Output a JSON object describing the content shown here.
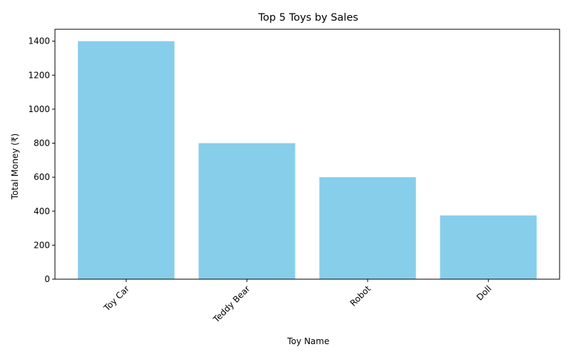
{
  "chart_data": {
    "type": "bar",
    "title": "Top 5 Toys by Sales",
    "xlabel": "Toy Name",
    "ylabel": "Total Money (₹)",
    "categories": [
      "Toy Car",
      "Teddy Bear",
      "Robot",
      "Doll"
    ],
    "values": [
      1400,
      800,
      600,
      375
    ],
    "ylim": [
      0,
      1470
    ],
    "yticks": [
      0,
      200,
      400,
      600,
      800,
      1000,
      1200,
      1400
    ],
    "xtick_rotation": 45,
    "bar_color": "#87CEEB",
    "grid": false,
    "legend": "none"
  }
}
